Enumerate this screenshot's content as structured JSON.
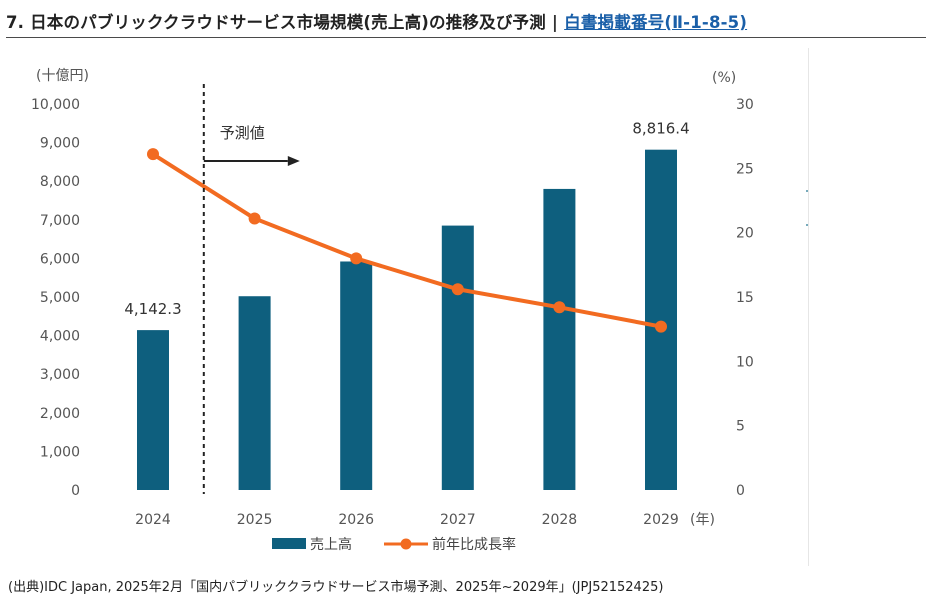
{
  "header": {
    "title": "7. 日本のパブリッククラウドサービス市場規模(売上高)の推移及び予測",
    "separator": "|",
    "reference_link": "白書掲載番号(Ⅱ-1-8-5)"
  },
  "colors": {
    "bar": "#0e5f7e",
    "line": "#f26b21",
    "axis_text": "#555555",
    "grid": "#d9d9d9"
  },
  "chart_data": {
    "type": "bar",
    "categories": [
      "2024",
      "2025",
      "2026",
      "2027",
      "2028",
      "2029"
    ],
    "series": [
      {
        "name": "売上高",
        "chart": "bar",
        "axis": "left",
        "values": [
          4142.3,
          5020,
          5920,
          6850,
          7800,
          8816.4
        ]
      },
      {
        "name": "前年比成長率",
        "chart": "line",
        "axis": "right",
        "values": [
          26.1,
          21.1,
          18.0,
          15.6,
          14.2,
          12.7
        ]
      }
    ],
    "data_labels": [
      {
        "index": 0,
        "text": "4,142.3"
      },
      {
        "index": 5,
        "text": "8,816.4"
      }
    ],
    "left_axis": {
      "unit_label": "(十億円)",
      "ylim": [
        0,
        10000
      ],
      "ticks": [
        "0",
        "1,000",
        "2,000",
        "3,000",
        "4,000",
        "5,000",
        "6,000",
        "7,000",
        "8,000",
        "9,000",
        "10,000"
      ]
    },
    "right_axis": {
      "unit_label": "(%)",
      "ylim": [
        0,
        30
      ],
      "ticks": [
        "0",
        "5",
        "10",
        "15",
        "20",
        "25",
        "30"
      ]
    },
    "x_unit_label": "(年)",
    "forecast_divider_after": "2024",
    "forecast_label": "予測値",
    "legend_position": "bottom"
  },
  "source": "(出典)IDC Japan, 2025年2月「国内パブリッククラウドサービス市場予測、2025年~2029年」(JPJ52152425)"
}
